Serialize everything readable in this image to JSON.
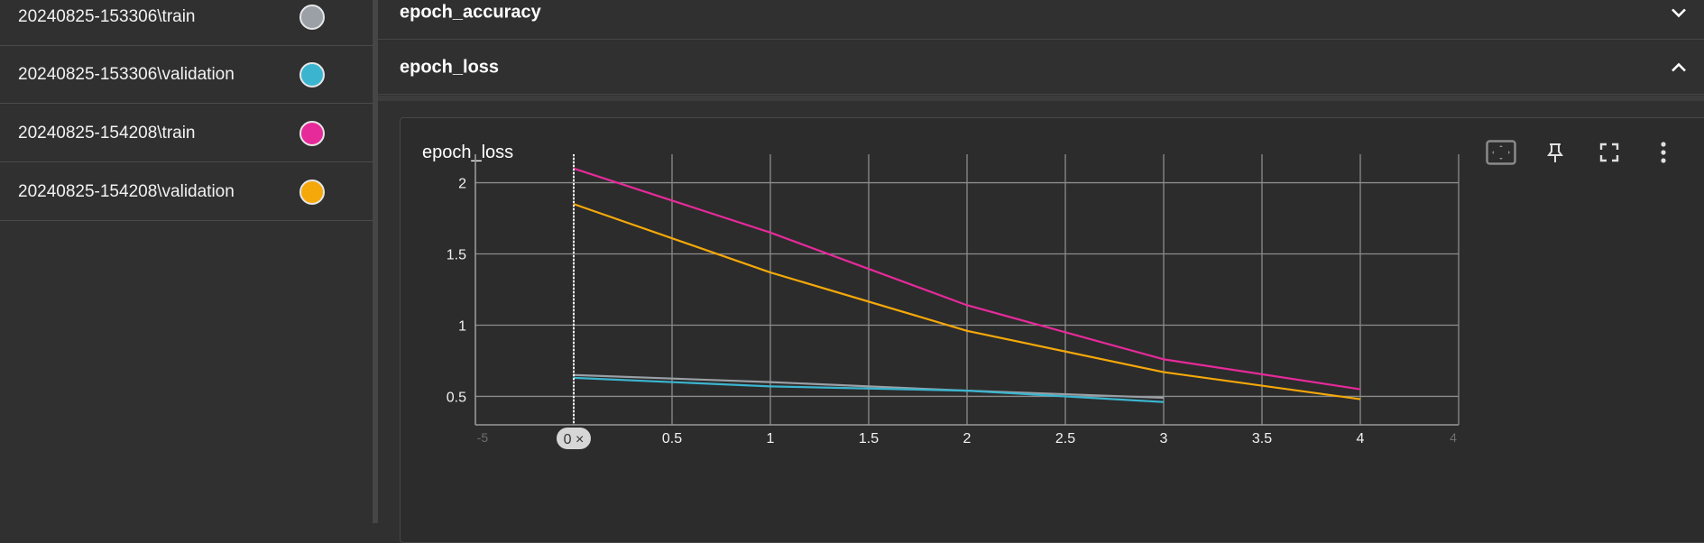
{
  "runs": [
    {
      "label": "20240825-153306\\train",
      "color": "#9aa0a6"
    },
    {
      "label": "20240825-153306\\validation",
      "color": "#3bb5cf"
    },
    {
      "label": "20240825-154208\\train",
      "color": "#e62a9a"
    },
    {
      "label": "20240825-154208\\validation",
      "color": "#f5a80a"
    }
  ],
  "groups": {
    "accuracy_title": "epoch_accuracy",
    "loss_title": "epoch_loss"
  },
  "card": {
    "title": "epoch_loss",
    "tools": [
      "fit-domain-icon",
      "pin-icon",
      "fullscreen-icon",
      "more-vert-icon"
    ]
  },
  "chart_data": {
    "type": "line",
    "title": "epoch_loss",
    "xlabel": "",
    "ylabel": "",
    "xlim": [
      -0.5,
      4.5
    ],
    "ylim": [
      0.3,
      2.2
    ],
    "x_ticks": [
      0,
      0.5,
      1,
      1.5,
      2,
      2.5,
      3,
      3.5,
      4
    ],
    "x_tick_labels": [
      "0.5",
      "1",
      "1.5",
      "2",
      "2.5",
      "3",
      "3.5",
      "4"
    ],
    "x_edge_labels": [
      "-5",
      "4"
    ],
    "y_ticks": [
      0.5,
      1,
      1.5,
      2
    ],
    "y_tick_labels": [
      "0.5",
      "1",
      "1.5",
      "2"
    ],
    "cursor": {
      "x": 0,
      "label": "0 ×"
    },
    "series": [
      {
        "name": "20240825-153306\\train",
        "color": "#9aa0a6",
        "x": [
          0,
          1,
          2,
          3
        ],
        "values": [
          0.65,
          0.6,
          0.54,
          0.49
        ]
      },
      {
        "name": "20240825-153306\\validation",
        "color": "#3bb5cf",
        "x": [
          0,
          1,
          2,
          3
        ],
        "values": [
          0.63,
          0.57,
          0.54,
          0.46
        ]
      },
      {
        "name": "20240825-154208\\train",
        "color": "#e62a9a",
        "x": [
          0,
          1,
          2,
          3,
          4
        ],
        "values": [
          2.1,
          1.65,
          1.14,
          0.76,
          0.55
        ]
      },
      {
        "name": "20240825-154208\\validation",
        "color": "#f5a80a",
        "x": [
          0,
          1,
          2,
          3,
          4
        ],
        "values": [
          1.85,
          1.37,
          0.96,
          0.67,
          0.48
        ]
      }
    ]
  }
}
